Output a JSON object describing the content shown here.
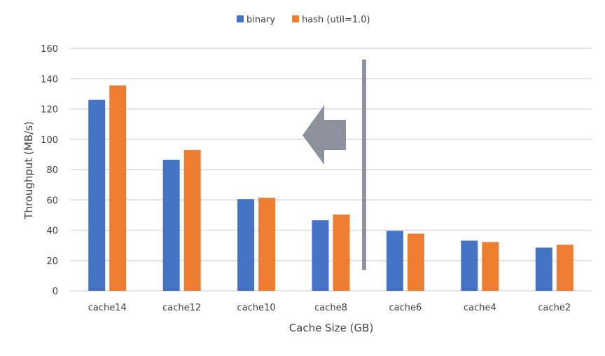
{
  "chart_data": {
    "type": "bar",
    "title": "",
    "xlabel": "Cache Size (GB)",
    "ylabel": "Throughput (MB/s)",
    "ylim": [
      0,
      160
    ],
    "yticks": [
      0,
      20,
      40,
      60,
      80,
      100,
      120,
      140,
      160
    ],
    "grid": true,
    "legend_position": "top",
    "categories": [
      "cache14",
      "cache12",
      "cache10",
      "cache8",
      "cache6",
      "cache4",
      "cache2"
    ],
    "series": [
      {
        "name": "binary",
        "color": "#4472c4",
        "values": [
          126,
          86.5,
          60.5,
          46.6,
          39.6,
          33.1,
          28.5
        ]
      },
      {
        "name": "hash (util=1.0)",
        "color": "#ed7d31",
        "values": [
          135.5,
          93,
          61.4,
          50.3,
          37.7,
          32.2,
          30.4
        ]
      }
    ],
    "annotations": [
      {
        "type": "vertical-divider",
        "between": [
          "cache8",
          "cache6"
        ],
        "color": "#8c919d"
      },
      {
        "type": "left-arrow",
        "color": "#8c919d"
      }
    ]
  }
}
